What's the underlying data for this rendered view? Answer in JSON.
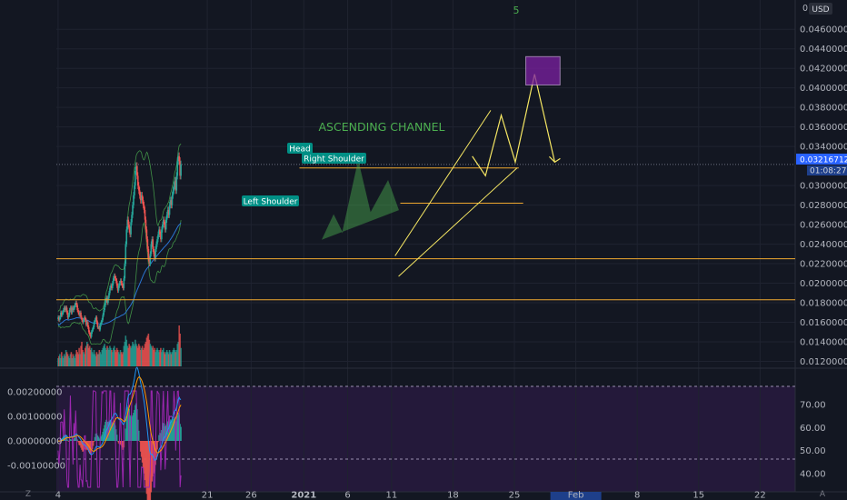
{
  "chart_data": {
    "type": "candlestick",
    "price_axis": {
      "currency": "USD",
      "ticks": [
        0.012,
        0.014,
        0.016,
        0.018,
        0.02,
        0.022,
        0.024,
        0.026,
        0.028,
        0.03,
        0.034,
        0.036,
        0.038,
        0.04,
        0.042,
        0.044,
        0.046
      ],
      "tick_labels": [
        "0.01200000",
        "0.01400000",
        "0.01600000",
        "0.01800000",
        "0.02000000",
        "0.02200000",
        "0.02400000",
        "0.02600000",
        "0.02800000",
        "0.03000000",
        "0.03400000",
        "0.03600000",
        "0.03800000",
        "0.04000000",
        "0.04200000",
        "0.04400000",
        "0.04600000"
      ],
      "top_label": "0.0",
      "range": [
        0.0113,
        0.049
      ],
      "current_price": 0.03216712,
      "current_price_label": "0.03216712",
      "countdown_label": "01:08:27"
    },
    "time_axis": {
      "tick_labels": [
        "4",
        "21",
        "26",
        "2021",
        "6",
        "11",
        "18",
        "25",
        "Feb",
        "8",
        "15",
        "22"
      ],
      "tick_days": [
        -28,
        -11,
        -6,
        0,
        5,
        10,
        17,
        24,
        31,
        38,
        45,
        52
      ],
      "highlight": "Feb",
      "day_range": [
        -28.2,
        56
      ]
    },
    "candles": {
      "start_day": -28,
      "step_days": 0.1,
      "closes": [
        0.0165,
        0.01625,
        0.0165,
        0.017,
        0.01675,
        0.017,
        0.01725,
        0.0175,
        0.01725,
        0.0175,
        0.017,
        0.0165,
        0.01675,
        0.01725,
        0.0175,
        0.017,
        0.0175,
        0.01725,
        0.0175,
        0.01775,
        0.018,
        0.01775,
        0.01725,
        0.017,
        0.01675,
        0.017,
        0.0165,
        0.01625,
        0.016,
        0.01625,
        0.0165,
        0.01625,
        0.01575,
        0.016,
        0.0155,
        0.015,
        0.01475,
        0.0145,
        0.015,
        0.01525,
        0.0155,
        0.016,
        0.01625,
        0.0165,
        0.016,
        0.0155,
        0.0155,
        0.01525,
        0.01575,
        0.016,
        0.01625,
        0.01675,
        0.01725,
        0.01775,
        0.01825,
        0.0185,
        0.018,
        0.0185,
        0.019,
        0.0195,
        0.01975,
        0.0195,
        0.02,
        0.0205,
        0.02075,
        0.0205,
        0.02025,
        0.01975,
        0.01925,
        0.01975,
        0.02,
        0.02025,
        0.02,
        0.01975,
        0.0195,
        0.0205,
        0.022,
        0.024,
        0.0255,
        0.0265,
        0.026,
        0.0255,
        0.025,
        0.02625,
        0.027,
        0.028,
        0.029,
        0.03,
        0.0315,
        0.032,
        0.031,
        0.03,
        0.0295,
        0.029,
        0.0285,
        0.029,
        0.0285,
        0.028,
        0.0275,
        0.0265,
        0.0255,
        0.0245,
        0.0235,
        0.0225,
        0.022,
        0.023,
        0.024,
        0.0245,
        0.0235,
        0.023,
        0.0225,
        0.0235,
        0.024,
        0.0245,
        0.025,
        0.0255,
        0.025,
        0.0245,
        0.0255,
        0.026,
        0.0265,
        0.026,
        0.0255,
        0.0265,
        0.027,
        0.0275,
        0.027,
        0.028,
        0.0285,
        0.028,
        0.029,
        0.0295,
        0.03,
        0.0305,
        0.0295,
        0.031,
        0.0325,
        0.033,
        0.0325,
        0.031,
        0.03217
      ],
      "volumes": [
        0.2,
        0.25,
        0.3,
        0.2,
        0.35,
        0.25,
        0.2,
        0.3,
        0.25,
        0.4,
        0.35,
        0.3,
        0.25,
        0.2,
        0.3,
        0.35,
        0.2,
        0.3,
        0.25,
        0.2,
        0.3,
        0.4,
        0.35,
        0.3,
        0.45,
        0.3,
        0.5,
        0.6,
        0.4,
        0.35,
        0.3,
        0.45,
        0.5,
        0.6,
        0.55,
        0.45,
        0.5,
        0.4,
        0.45,
        0.35,
        0.3,
        0.4,
        0.3,
        0.25,
        0.35,
        0.3,
        0.3,
        0.4,
        0.35,
        0.3,
        0.4,
        0.45,
        0.5,
        0.55,
        0.45,
        0.4,
        0.5,
        0.45,
        0.4,
        0.5,
        0.45,
        0.4,
        0.35,
        0.45,
        0.5,
        0.4,
        0.35,
        0.45,
        0.4,
        0.35,
        0.3,
        0.4,
        0.35,
        0.3,
        0.35,
        0.5,
        0.6,
        0.75,
        0.65,
        0.5,
        0.45,
        0.55,
        0.5,
        0.45,
        0.5,
        0.6,
        0.55,
        0.5,
        0.65,
        0.55,
        0.5,
        0.45,
        0.55,
        0.5,
        0.4,
        0.45,
        0.5,
        0.4,
        0.45,
        0.55,
        0.6,
        0.7,
        0.75,
        0.8,
        0.65,
        0.55,
        0.5,
        0.45,
        0.5,
        0.4,
        0.45,
        0.35,
        0.4,
        0.45,
        0.4,
        0.35,
        0.4,
        0.45,
        0.35,
        0.4,
        0.45,
        0.35,
        0.3,
        0.35,
        0.4,
        0.35,
        0.3,
        0.4,
        0.35,
        0.3,
        0.35,
        0.4,
        0.45,
        0.4,
        0.35,
        0.4,
        0.55,
        0.6,
        1.0,
        0.8,
        0.45
      ]
    },
    "indicator_axis": {
      "left_ticks": [
        0.002,
        0.001,
        0.0,
        -0.001
      ],
      "left_labels": [
        "0.00200000",
        "0.00100000",
        "0.00000000",
        "-0.00100000"
      ],
      "right_ticks": [
        70,
        60,
        50,
        40
      ],
      "right_labels": [
        "70.00",
        "60.00",
        "50.00",
        "40.00"
      ],
      "right_range": [
        32,
        78
      ]
    },
    "annotations": {
      "pattern_labels": [
        "Head",
        "Right Shoulder",
        "Left Shoulder"
      ],
      "channel_label": "ASCENDING CHANNEL",
      "top_marker": "5"
    },
    "levels": [
      0.0225,
      0.0183,
      0.0318,
      0.0282
    ],
    "colors": {
      "up": "#26a69a",
      "down": "#ef5350",
      "level": "#f0a830",
      "channel": "#f5e663",
      "label_bg": "#008f85",
      "channel_text": "#4caf50",
      "band": "#4caf50",
      "ma": "#2a75d3",
      "rsi": "#9c27b0",
      "target_box": "#7b1fa2"
    }
  },
  "bottom_bar": {
    "left_glyph": "Z",
    "right_glyph": "A"
  }
}
